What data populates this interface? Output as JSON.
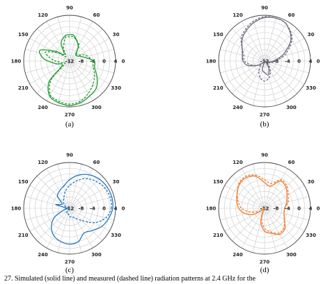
{
  "caption": "27. Simulated (solid line) and measured (dashed line) radiation patterns at 2.4 GHz for the",
  "chart_data": [
    {
      "type": "polar",
      "panel_label": "(a)",
      "color": "#1a9a2a",
      "angle_ticks": [
        "0",
        "30",
        "60",
        "90",
        "120",
        "150",
        "180",
        "210",
        "240",
        "270",
        "300",
        "330"
      ],
      "radial_ticks": [
        "-12",
        "-8",
        "-4",
        "0",
        "4"
      ],
      "rlim": [
        -12,
        4
      ],
      "series": [
        {
          "style": "solid",
          "angles": [
            0,
            20,
            45,
            60,
            80,
            90,
            100,
            115,
            130,
            145,
            160,
            175,
            190,
            210,
            225,
            240,
            255,
            270,
            285,
            300,
            315,
            330,
            345,
            360
          ],
          "values": [
            -3.5,
            -7.4,
            -9,
            -6,
            -3,
            -2.8,
            -3,
            -5,
            -9,
            -6,
            -1,
            -3,
            -7,
            -9,
            -2,
            2,
            3,
            3.5,
            3,
            2,
            1.2,
            -1,
            -3,
            -3.5
          ]
        },
        {
          "style": "dashed",
          "angles": [
            0,
            20,
            45,
            60,
            80,
            90,
            100,
            115,
            130,
            145,
            160,
            175,
            190,
            210,
            225,
            240,
            255,
            270,
            285,
            300,
            315,
            330,
            345,
            360
          ],
          "values": [
            -4,
            -6,
            -8.5,
            -5.5,
            -3.5,
            -3.5,
            -3.6,
            -7,
            -10,
            -7,
            -3,
            -6,
            -9,
            -10,
            -3,
            1.5,
            2.5,
            3,
            2.5,
            1,
            -0.5,
            -2,
            -3.5,
            -4
          ]
        }
      ]
    },
    {
      "type": "polar",
      "panel_label": "(b)",
      "color": "#6a6a7a",
      "angle_ticks": [
        "0",
        "30",
        "60",
        "90",
        "120",
        "150",
        "180",
        "210",
        "240",
        "270",
        "300",
        "330"
      ],
      "radial_ticks": [
        "-12",
        "-8",
        "-4",
        "0",
        "4"
      ],
      "rlim": [
        -12,
        4
      ],
      "series": [
        {
          "style": "solid",
          "angles": [
            0,
            20,
            40,
            60,
            75,
            90,
            105,
            120,
            135,
            150,
            165,
            180,
            195,
            210,
            225,
            240,
            255,
            270,
            285,
            300,
            315,
            330,
            345,
            360
          ],
          "values": [
            -9,
            -5,
            0,
            3,
            3.5,
            3.2,
            2,
            0.5,
            -1,
            -3,
            -4,
            -4.5,
            -6,
            -9,
            -11,
            -12,
            -9,
            -8,
            -7,
            -9,
            -11,
            -12,
            -11,
            -9
          ]
        },
        {
          "style": "dashed",
          "angles": [
            0,
            20,
            40,
            60,
            75,
            90,
            105,
            120,
            135,
            150,
            165,
            180,
            195,
            210,
            225,
            240,
            255,
            270,
            285,
            300,
            315,
            330,
            345,
            360
          ],
          "values": [
            -8,
            -4,
            0.5,
            3,
            3.5,
            3.5,
            2.5,
            1,
            -0.5,
            -3,
            -4.5,
            -5,
            -7,
            -9,
            -10,
            -8,
            -6,
            -5,
            -6,
            -8,
            -10,
            -11,
            -10,
            -8
          ]
        }
      ]
    },
    {
      "type": "polar",
      "panel_label": "(c)",
      "color": "#2077c0",
      "angle_ticks": [
        "0",
        "30",
        "60",
        "90",
        "120",
        "150",
        "180",
        "210",
        "240",
        "270",
        "300",
        "330"
      ],
      "radial_ticks": [
        "-12",
        "-8",
        "-4",
        "0",
        "4"
      ],
      "rlim": [
        -12,
        4
      ],
      "series": [
        {
          "style": "solid",
          "angles": [
            0,
            15,
            30,
            45,
            60,
            75,
            90,
            105,
            120,
            135,
            150,
            165,
            180,
            195,
            210,
            225,
            240,
            255,
            270,
            285,
            300,
            315,
            330,
            345,
            360
          ],
          "values": [
            3,
            3.2,
            3,
            2.5,
            1.5,
            0,
            -2,
            -4,
            -5,
            -6,
            -9,
            -7,
            -11,
            -10,
            -6,
            -3,
            -1,
            0,
            0.5,
            0,
            -2,
            -1,
            0.8,
            2,
            3
          ]
        },
        {
          "style": "dashed",
          "angles": [
            0,
            15,
            30,
            45,
            60,
            75,
            90,
            105,
            120,
            135,
            150,
            165,
            180,
            195,
            210,
            225,
            240,
            255,
            270,
            285,
            300,
            315,
            330,
            345,
            360
          ],
          "values": [
            2.5,
            2.6,
            2.2,
            1.2,
            0,
            -2,
            -4,
            -6,
            -8,
            -9,
            -10,
            -11,
            -12,
            -12,
            -12,
            -11,
            -10,
            -10,
            -9,
            -9,
            -8,
            -6,
            -2,
            1,
            2.5
          ]
        }
      ]
    },
    {
      "type": "polar",
      "panel_label": "(d)",
      "color": "#f07a2a",
      "angle_ticks": [
        "0",
        "30",
        "60",
        "90",
        "120",
        "150",
        "180",
        "210",
        "240",
        "270",
        "300",
        "330"
      ],
      "radial_ticks": [
        "-12",
        "-8",
        "-4",
        "0",
        "4"
      ],
      "rlim": [
        -12,
        4
      ],
      "series": [
        {
          "style": "solid",
          "angles": [
            0,
            15,
            30,
            45,
            60,
            75,
            90,
            105,
            120,
            135,
            150,
            165,
            180,
            195,
            210,
            225,
            240,
            255,
            270,
            285,
            300,
            315,
            330,
            345,
            360
          ],
          "values": [
            -5,
            -4,
            -3,
            -1.5,
            -1,
            -4,
            -3,
            -0.5,
            0.5,
            0.2,
            -1,
            -2,
            -3,
            -5,
            -8,
            -12,
            -11,
            -7,
            -4,
            -3,
            -1.5,
            -2,
            -4,
            -5,
            -5
          ]
        },
        {
          "style": "dashed",
          "angles": [
            0,
            15,
            30,
            45,
            60,
            75,
            90,
            105,
            120,
            135,
            150,
            165,
            180,
            195,
            210,
            225,
            240,
            255,
            270,
            285,
            300,
            315,
            330,
            345,
            360
          ],
          "values": [
            -5,
            -3.5,
            -2.5,
            -1,
            -0.5,
            -3,
            -2,
            0,
            1,
            0.5,
            -1,
            -2.5,
            -4,
            -7,
            -10,
            -12,
            -11,
            -8,
            -5,
            -3.5,
            -2,
            -2.5,
            -4,
            -5,
            -5
          ]
        }
      ]
    }
  ]
}
